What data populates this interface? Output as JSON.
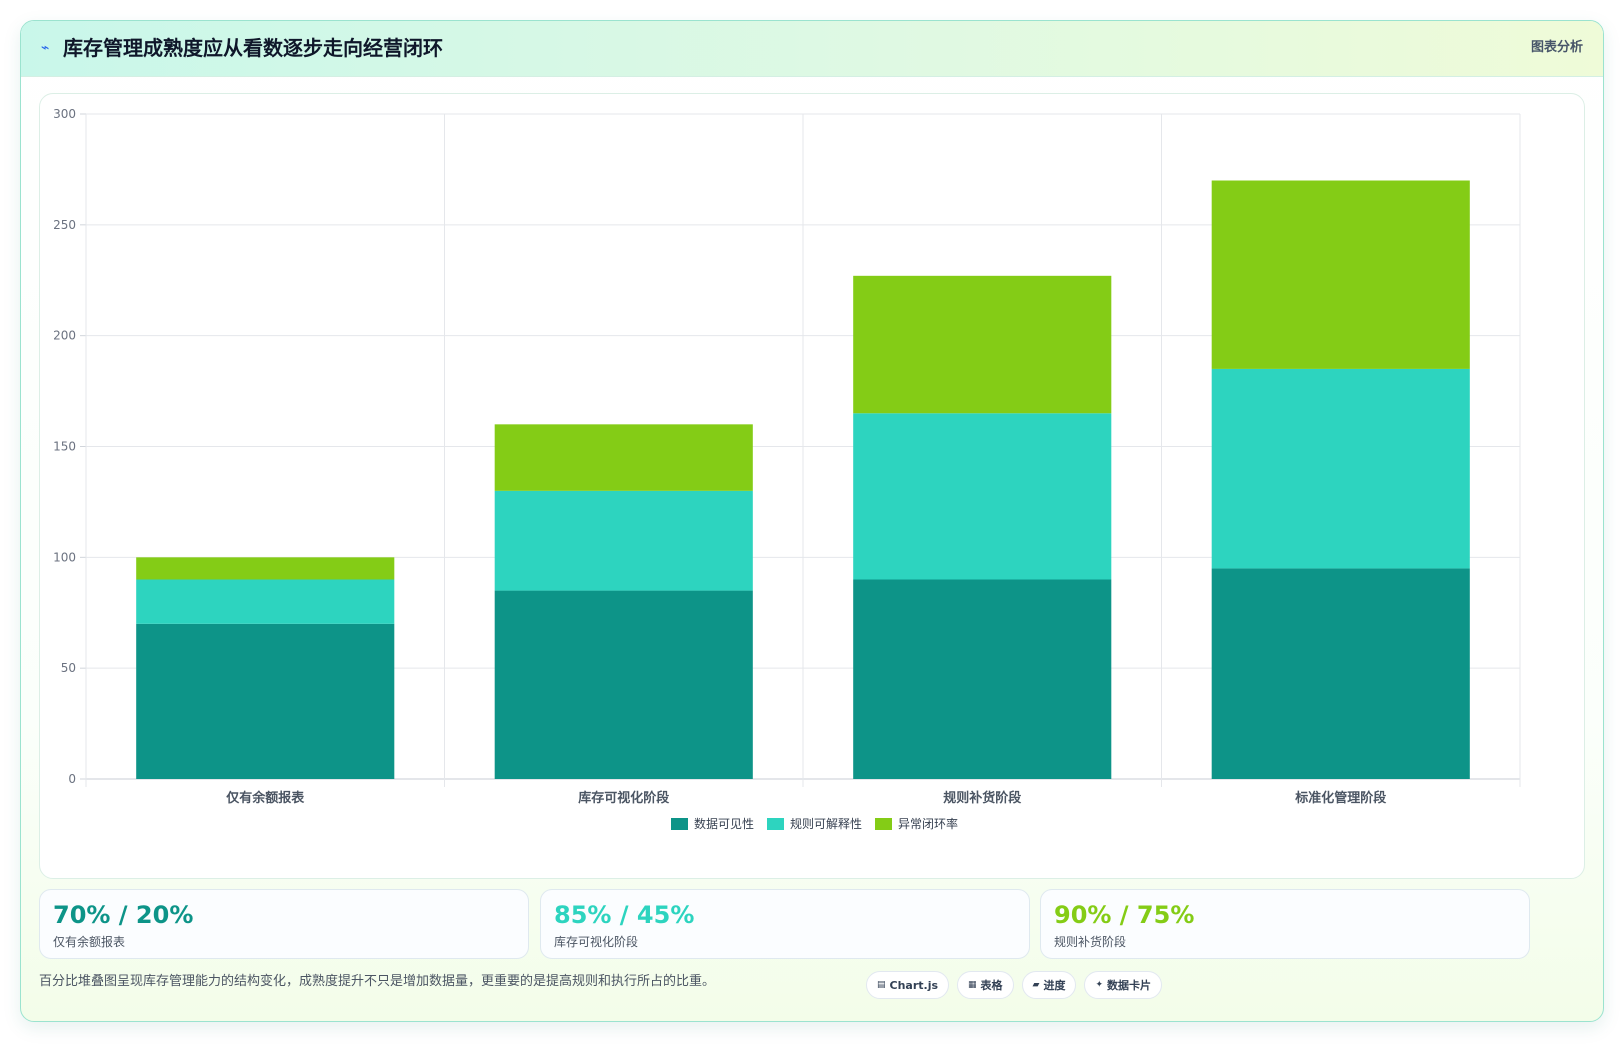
{
  "header": {
    "icon": "pulse-icon",
    "title": "库存管理成熟度应从看数逐步走向经营闭环",
    "right_label": "图表分析"
  },
  "colors": {
    "visibility": "#0d9488",
    "explainability": "#2dd4bf",
    "closed_loop": "#84cc16"
  },
  "chart_data": {
    "type": "bar",
    "stacked": true,
    "categories": [
      "仅有余额报表",
      "库存可视化阶段",
      "规则补货阶段",
      "标准化管理阶段"
    ],
    "series": [
      {
        "name": "数据可见性",
        "values": [
          70,
          85,
          90,
          95
        ],
        "color": "#0d9488"
      },
      {
        "name": "规则可解释性",
        "values": [
          20,
          45,
          75,
          90
        ],
        "color": "#2dd4bf"
      },
      {
        "name": "异常闭环率",
        "values": [
          10,
          30,
          62,
          85
        ],
        "color": "#84cc16"
      }
    ],
    "ylim": [
      0,
      300
    ],
    "yticks": [
      0,
      50,
      100,
      150,
      200,
      250,
      300
    ],
    "grid": true,
    "legend": "bottom"
  },
  "stats": [
    {
      "value": "70% / 20%",
      "label": "仅有余额报表",
      "color": "#0d9488"
    },
    {
      "value": "85% / 45%",
      "label": "库存可视化阶段",
      "color": "#2dd4bf"
    },
    {
      "value": "90% / 75%",
      "label": "规则补货阶段",
      "color": "#84cc16"
    }
  ],
  "footer": {
    "note": "百分比堆叠图呈现库存管理能力的结构变化，成熟度提升不只是增加数据量，更重要的是提高规则和执行所占的比重。",
    "tags": [
      {
        "icon": "▤",
        "label": "Chart.js"
      },
      {
        "icon": "▦",
        "label": "表格"
      },
      {
        "icon": "▰",
        "label": "进度"
      },
      {
        "icon": "✦",
        "label": "数据卡片"
      }
    ]
  }
}
